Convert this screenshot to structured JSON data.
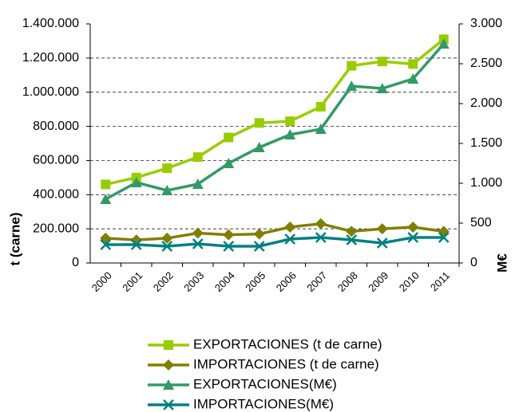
{
  "chart_data": {
    "type": "line",
    "categories": [
      "2000",
      "2001",
      "2002",
      "2003",
      "2004",
      "2005",
      "2006",
      "2007",
      "2008",
      "2009",
      "2010",
      "2011"
    ],
    "y_label": "t (carne)",
    "y2_label": "M€",
    "ylim": [
      0,
      1400000
    ],
    "yticks": [
      0,
      {
        "value": 200000,
        "label": "200.000"
      },
      {
        "value": 400000,
        "label": "400.000"
      },
      {
        "value": 600000,
        "label": "600.000"
      },
      {
        "value": 800000,
        "label": "800.000"
      },
      {
        "value": 1000000,
        "label": "1.000.000"
      },
      {
        "value": 1200000,
        "label": "1.200.000"
      },
      {
        "value": 1400000,
        "label": "1.400.000"
      }
    ],
    "y2lim": [
      0,
      3000
    ],
    "y2ticks": [
      0,
      500,
      {
        "value": 1000,
        "label": "1.000"
      },
      {
        "value": 1500,
        "label": "1.500"
      },
      {
        "value": 2000,
        "label": "2.000"
      },
      {
        "value": 2500,
        "label": "2.500"
      },
      {
        "value": 3000,
        "label": "3.000"
      }
    ],
    "grid": true,
    "series": [
      {
        "name": "EXPORTACIONES (t de carne)",
        "color": "#99cc00",
        "marker": "square",
        "values": [
          460000,
          500000,
          555000,
          620000,
          735000,
          820000,
          830000,
          915000,
          1155000,
          1180000,
          1165000,
          1310000
        ]
      },
      {
        "name": "IMPORTACIONES (t de carne)",
        "color": "#808000",
        "marker": "diamond",
        "values": [
          145000,
          135000,
          145000,
          175000,
          165000,
          170000,
          210000,
          230000,
          185000,
          200000,
          210000,
          185000
        ]
      },
      {
        "name": "EXPORTACIONES(M€)",
        "color": "#339966",
        "marker": "triangle",
        "axis": "y2",
        "values": [
          800,
          1010,
          910,
          990,
          1250,
          1450,
          1610,
          1680,
          2220,
          2190,
          2310,
          2750
        ]
      },
      {
        "name": "IMPORTACIONES(M€)",
        "color": "#008080",
        "marker": "x",
        "axis": "y2",
        "values": [
          230,
          230,
          210,
          240,
          210,
          210,
          300,
          320,
          290,
          250,
          320,
          320
        ]
      }
    ]
  }
}
